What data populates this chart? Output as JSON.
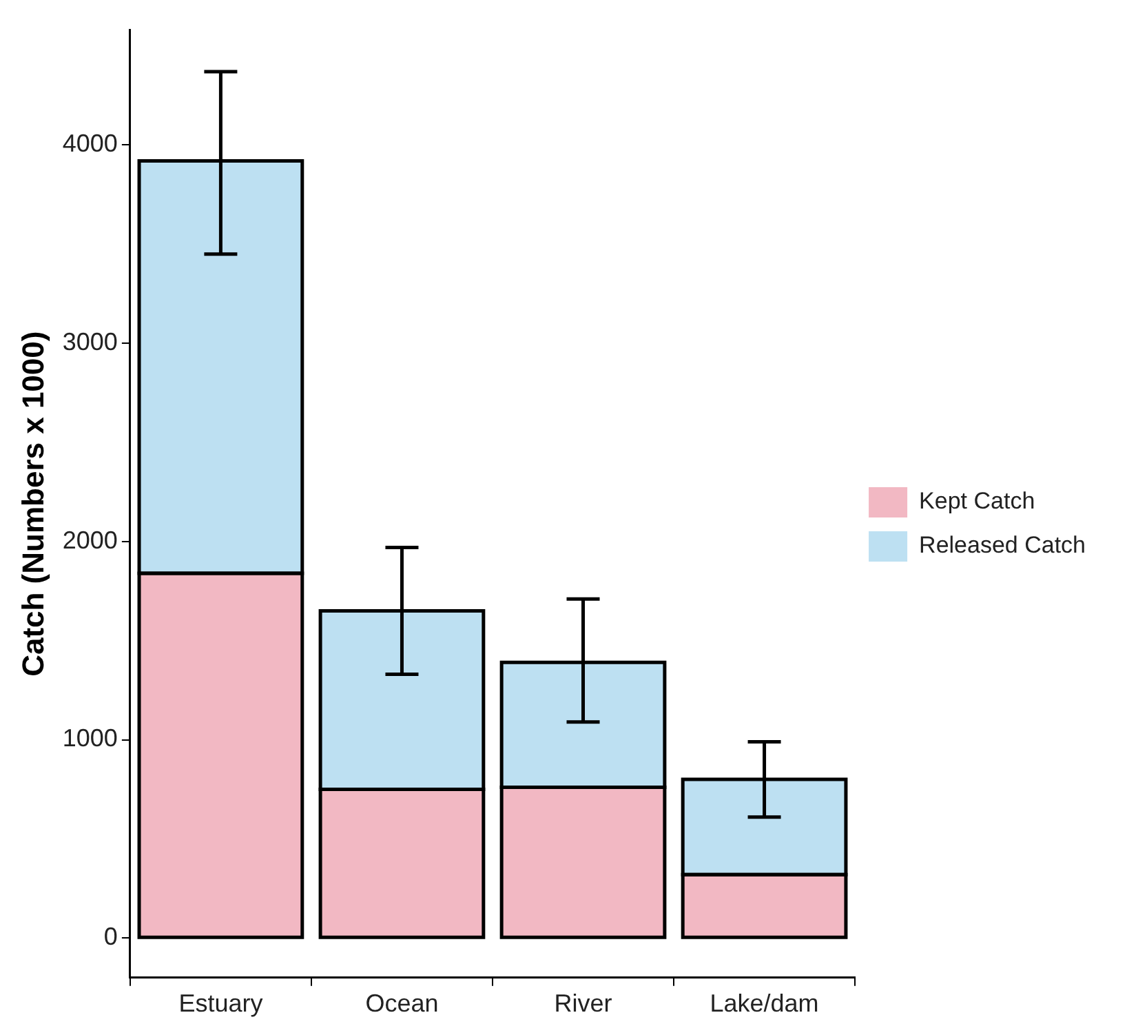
{
  "chart_data": {
    "type": "bar",
    "ylabel": "Catch (Numbers x 1000)",
    "categories": [
      "Estuary",
      "Ocean",
      "River",
      "Lake/dam"
    ],
    "stacked": true,
    "series": [
      {
        "name": "Kept Catch",
        "color": "#f2b8c3",
        "values": [
          1840,
          750,
          760,
          320
        ]
      },
      {
        "name": "Released Catch",
        "color": "#bde0f2",
        "values": [
          2080,
          900,
          630,
          480
        ],
        "errors": [
          [
            3450,
            4370
          ],
          [
            1330,
            1970
          ],
          [
            1090,
            1710
          ],
          [
            610,
            990
          ]
        ]
      }
    ],
    "ylim": [
      -200,
      4580
    ],
    "yticks": [
      0,
      1000,
      2000,
      3000,
      4000
    ],
    "grid": false,
    "legend": "right"
  }
}
